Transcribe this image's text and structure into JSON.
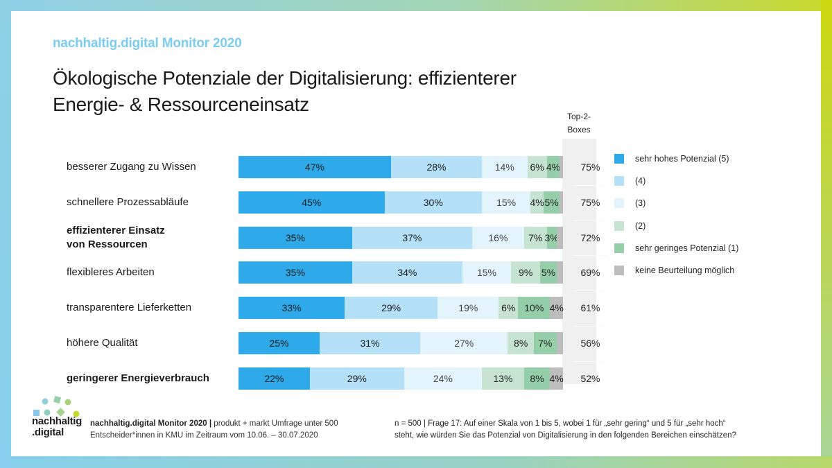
{
  "header": {
    "brand": "nachhaltig.digital Monitor 2020",
    "title_line1": "Ökologische Potenziale der Digitalisierung: effizienterer",
    "title_line2": "Energie- & Ressourceneinsatz"
  },
  "top2_header_line1": "Top-2-",
  "top2_header_line2": "Boxes",
  "chart_data": {
    "type": "bar",
    "orientation": "horizontal",
    "stacked": true,
    "normalized": true,
    "title": "Ökologische Potenziale der Digitalisierung: effizienterer Energie- & Ressourceneinsatz",
    "xlabel": "",
    "ylabel": "",
    "xlim": [
      0,
      100
    ],
    "grid": false,
    "legend_position": "right",
    "categories": [
      "besserer Zugang zu Wissen",
      "schnellere Prozessabläufe",
      "effizienterer Einsatz von Ressourcen",
      "flexibleres Arbeiten",
      "transparentere Lieferketten",
      "höhere Qualität",
      "geringerer Energieverbrauch"
    ],
    "category_label_lines": [
      [
        "besserer Zugang zu Wissen"
      ],
      [
        "schnellere Prozessabläufe"
      ],
      [
        "effizienterer Einsatz",
        "von Ressourcen"
      ],
      [
        "flexibleres Arbeiten"
      ],
      [
        "transparentere Lieferketten"
      ],
      [
        "höhere Qualität"
      ],
      [
        "geringerer Energieverbrauch"
      ]
    ],
    "bold_categories": [
      false,
      false,
      true,
      false,
      false,
      false,
      true
    ],
    "series": [
      {
        "name": "sehr hohes Potenzial (5)",
        "color": "#2eaaeb",
        "values": [
          47,
          45,
          35,
          35,
          33,
          25,
          22
        ],
        "labels": [
          "47%",
          "45%",
          "35%",
          "35%",
          "33%",
          "25%",
          "22%"
        ]
      },
      {
        "name": "(4)",
        "color": "#b5e1f8",
        "values": [
          28,
          30,
          37,
          34,
          29,
          31,
          29
        ],
        "labels": [
          "28%",
          "30%",
          "37%",
          "34%",
          "29%",
          "31%",
          "29%"
        ]
      },
      {
        "name": "(3)",
        "color": "#e3f4fc",
        "values": [
          14,
          15,
          16,
          15,
          19,
          27,
          24
        ],
        "labels": [
          "14%",
          "15%",
          "16%",
          "15%",
          "19%",
          "27%",
          "24%"
        ]
      },
      {
        "name": "(2)",
        "color": "#c6e4d1",
        "values": [
          6,
          4,
          7,
          9,
          6,
          8,
          13
        ],
        "labels": [
          "6%",
          "4%",
          "7%",
          "9%",
          "6%",
          "8%",
          "13%"
        ]
      },
      {
        "name": "sehr geringes Potenzial (1)",
        "color": "#95cfa9",
        "values": [
          4,
          5,
          3,
          5,
          10,
          7,
          8
        ],
        "labels": [
          "4%",
          "5%",
          "3%",
          "5%",
          "10%",
          "7%",
          "8%"
        ]
      },
      {
        "name": "keine Beurteilung möglich",
        "color": "#bdbdbd",
        "values": [
          1,
          1,
          2,
          2,
          4,
          2,
          4
        ],
        "labels": [
          null,
          null,
          null,
          null,
          "4%",
          null,
          "4%"
        ]
      }
    ],
    "top2_boxes": [
      "75%",
      "75%",
      "72%",
      "69%",
      "61%",
      "56%",
      "52%"
    ]
  },
  "footer": {
    "source_bold": "nachhaltig.digital Monitor 2020",
    "source_sep": " | ",
    "source_line1_rest": "produkt + markt Umfrage unter 500",
    "source_line2": "Entscheider*innen in KMU im Zeitraum vom 10.06. – 30.07.2020",
    "note_line1": "n = 500 | Frage 17: Auf einer Skala von 1 bis 5, wobei 1 für „sehr gering“ und 5 für „sehr hoch“",
    "note_line2": "steht, wie würden Sie das Potenzial von Digitalisierung in den folgenden Bereichen einschätzen?"
  },
  "logo": {
    "line1": "nachhaltig",
    "line2": ".digital"
  }
}
